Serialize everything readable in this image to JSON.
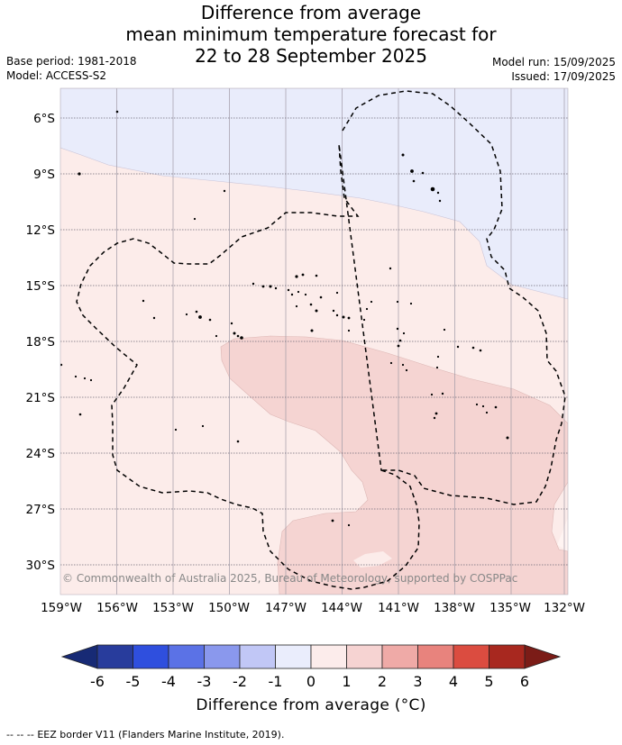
{
  "header": {
    "title_lines": [
      "Difference from average",
      "mean minimum temperature forecast for",
      "22 to 28 September 2025"
    ],
    "base_period": "Base period: 1981-2018",
    "model": "Model: ACCESS-S2",
    "model_run": "Model run: 15/09/2025",
    "issued": "Issued: 17/09/2025"
  },
  "map": {
    "lat_labels": [
      "6°S",
      "9°S",
      "12°S",
      "15°S",
      "18°S",
      "21°S",
      "24°S",
      "27°S",
      "30°S"
    ],
    "lon_labels": [
      "159°W",
      "156°W",
      "153°W",
      "150°W",
      "147°W",
      "144°W",
      "141°W",
      "138°W",
      "135°W",
      "132°W"
    ],
    "copyright": "© Commonwealth of Australia 2025, Bureau of Meteorology, supported by COSPPac",
    "lat_range": [
      -32.3,
      -4.5
    ],
    "lon_range": [
      -159,
      -132
    ],
    "grid": true
  },
  "colorbar": {
    "ticks": [
      "-6",
      "-5",
      "-4",
      "-3",
      "-2",
      "-1",
      "0",
      "1",
      "2",
      "3",
      "4",
      "5",
      "6"
    ],
    "colors": [
      "#283c9c",
      "#2f4fde",
      "#5b72e6",
      "#8a98ed",
      "#c1c7f6",
      "#eaedfc",
      "#fceceb",
      "#f6d3d2",
      "#efaaa7",
      "#e8837d",
      "#db4c40",
      "#a8281f"
    ],
    "extend_low": "#172a75",
    "extend_high": "#7b1c17",
    "title": "Difference from average (°C)"
  },
  "footer": {
    "legend_dash": "-- -- --",
    "legend_text": "EEZ border V11 (Flanders Marine Institute, 2019)."
  }
}
